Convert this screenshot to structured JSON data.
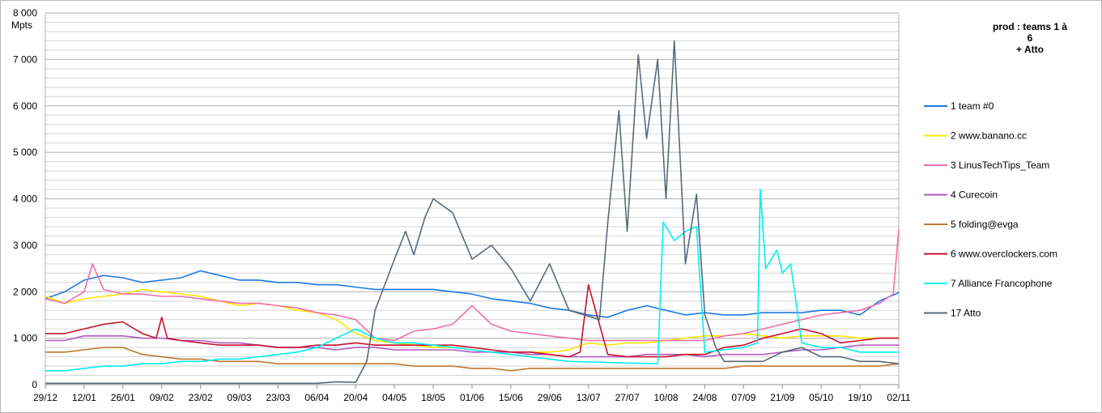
{
  "chart_data": {
    "type": "line",
    "title": "prod : teams 1 à 6\n+ Atto",
    "ylabel": "Mpts",
    "ylim": [
      0,
      8000
    ],
    "yticks": [
      0,
      1000,
      2000,
      3000,
      4000,
      5000,
      6000,
      7000,
      8000
    ],
    "ytick_labels": [
      "0",
      "1 000",
      "2 000",
      "3 000",
      "4 000",
      "5 000",
      "6 000",
      "7 000",
      "8 000"
    ],
    "x_labels": [
      "29/12",
      "12/01",
      "26/01",
      "09/02",
      "23/02",
      "09/03",
      "23/03",
      "06/04",
      "20/04",
      "04/05",
      "18/05",
      "01/06",
      "15/06",
      "29/06",
      "13/07",
      "27/07",
      "10/08",
      "24/08",
      "07/09",
      "21/09",
      "05/10",
      "19/10",
      "02/11"
    ],
    "x_day_step": 14,
    "grid": true,
    "legend_position": "right",
    "series": [
      {
        "name": "1 team #0",
        "color": "#1f7ae0",
        "x": [
          0,
          7,
          14,
          21,
          28,
          35,
          42,
          49,
          56,
          63,
          70,
          77,
          84,
          91,
          98,
          105,
          112,
          119,
          126,
          133,
          140,
          147,
          154,
          161,
          168,
          175,
          182,
          189,
          196,
          203,
          210,
          217,
          224,
          231,
          238,
          245,
          252,
          259,
          266,
          273,
          280,
          287,
          294,
          301,
          308
        ],
        "y": [
          1850,
          2000,
          2250,
          2350,
          2300,
          2200,
          2250,
          2300,
          2450,
          2350,
          2250,
          2250,
          2200,
          2200,
          2150,
          2150,
          2100,
          2050,
          2050,
          2050,
          2050,
          2000,
          1950,
          1850,
          1800,
          1750,
          1650,
          1600,
          1500,
          1450,
          1600,
          1700,
          1600,
          1500,
          1550,
          1500,
          1500,
          1550,
          1550,
          1550,
          1600,
          1600,
          1500,
          1800,
          1980
        ]
      },
      {
        "name": "2 www.banano.cc",
        "color": "#ffe600",
        "x": [
          0,
          7,
          14,
          21,
          28,
          35,
          42,
          49,
          56,
          63,
          70,
          77,
          84,
          91,
          98,
          105,
          112,
          119,
          126,
          133,
          140,
          147,
          154,
          161,
          168,
          175,
          182,
          189,
          196,
          203,
          210,
          217,
          224,
          231,
          238,
          245,
          252,
          259,
          266,
          273,
          280,
          287,
          294,
          301,
          308
        ],
        "y": [
          1900,
          1750,
          1850,
          1900,
          1950,
          2050,
          2000,
          1950,
          1900,
          1800,
          1700,
          1750,
          1700,
          1600,
          1550,
          1400,
          1100,
          950,
          900,
          850,
          800,
          800,
          750,
          700,
          700,
          700,
          700,
          750,
          900,
          850,
          900,
          900,
          950,
          1000,
          1050,
          1050,
          1100,
          1050,
          1000,
          1050,
          1050,
          1050,
          1000,
          1000,
          1000
        ]
      },
      {
        "name": "3 LinusTechTips_Team",
        "color": "#f06eaa",
        "x": [
          0,
          7,
          14,
          17,
          21,
          28,
          35,
          42,
          49,
          56,
          63,
          70,
          77,
          84,
          91,
          98,
          105,
          112,
          119,
          126,
          133,
          140,
          147,
          154,
          161,
          168,
          175,
          182,
          189,
          196,
          203,
          210,
          217,
          224,
          231,
          238,
          245,
          252,
          259,
          266,
          273,
          280,
          287,
          294,
          301,
          306,
          308
        ],
        "y": [
          1850,
          1750,
          2000,
          2600,
          2050,
          1950,
          1950,
          1900,
          1900,
          1850,
          1800,
          1750,
          1750,
          1700,
          1650,
          1550,
          1500,
          1400,
          1000,
          950,
          1150,
          1200,
          1300,
          1700,
          1300,
          1150,
          1100,
          1050,
          1000,
          950,
          950,
          950,
          950,
          950,
          950,
          950,
          1050,
          1100,
          1200,
          1300,
          1400,
          1500,
          1550,
          1600,
          1750,
          1950,
          3350
        ]
      },
      {
        "name": "4 Curecoin",
        "color": "#b35ac4",
        "x": [
          0,
          7,
          14,
          21,
          28,
          35,
          42,
          49,
          56,
          63,
          70,
          77,
          84,
          91,
          98,
          105,
          112,
          119,
          126,
          133,
          140,
          147,
          154,
          161,
          168,
          175,
          182,
          189,
          196,
          203,
          210,
          217,
          224,
          231,
          238,
          245,
          252,
          259,
          266,
          273,
          280,
          287,
          294,
          301,
          308
        ],
        "y": [
          950,
          950,
          1050,
          1050,
          1050,
          1000,
          1000,
          950,
          950,
          900,
          900,
          850,
          800,
          800,
          800,
          750,
          800,
          800,
          750,
          750,
          750,
          750,
          700,
          700,
          700,
          650,
          650,
          600,
          600,
          600,
          600,
          650,
          650,
          650,
          600,
          650,
          650,
          650,
          700,
          750,
          750,
          800,
          850,
          850,
          850
        ]
      },
      {
        "name": "5 folding@evga",
        "color": "#c07830",
        "x": [
          0,
          7,
          14,
          21,
          28,
          35,
          42,
          49,
          56,
          63,
          70,
          77,
          84,
          91,
          98,
          105,
          112,
          119,
          126,
          133,
          140,
          147,
          154,
          161,
          168,
          175,
          182,
          189,
          196,
          203,
          210,
          217,
          224,
          231,
          238,
          245,
          252,
          259,
          266,
          273,
          280,
          287,
          294,
          301,
          308
        ],
        "y": [
          700,
          700,
          750,
          800,
          800,
          650,
          600,
          550,
          550,
          500,
          500,
          500,
          450,
          450,
          450,
          450,
          450,
          450,
          450,
          400,
          400,
          400,
          350,
          350,
          300,
          350,
          350,
          350,
          350,
          350,
          350,
          350,
          350,
          350,
          350,
          350,
          400,
          400,
          400,
          400,
          400,
          400,
          400,
          400,
          450
        ]
      },
      {
        "name": "6 www.overclockers.com",
        "color": "#c8102e",
        "x": [
          0,
          7,
          14,
          21,
          28,
          35,
          40,
          42,
          44,
          49,
          56,
          63,
          70,
          77,
          84,
          91,
          98,
          105,
          112,
          119,
          126,
          133,
          140,
          145,
          147,
          154,
          161,
          168,
          175,
          182,
          189,
          193,
          196,
          203,
          210,
          217,
          224,
          231,
          238,
          245,
          252,
          259,
          266,
          273,
          280,
          287,
          294,
          301,
          308
        ],
        "y": [
          1100,
          1100,
          1200,
          1300,
          1350,
          1100,
          1000,
          1450,
          1000,
          950,
          900,
          850,
          850,
          850,
          800,
          800,
          850,
          850,
          900,
          850,
          850,
          850,
          850,
          850,
          850,
          800,
          750,
          700,
          700,
          650,
          600,
          700,
          2150,
          650,
          600,
          600,
          600,
          650,
          650,
          800,
          850,
          1000,
          1100,
          1200,
          1100,
          900,
          950,
          1000,
          1000
        ]
      },
      {
        "name": "7 Alliance Francophone",
        "color": "#00f0f0",
        "x": [
          0,
          7,
          14,
          21,
          28,
          35,
          42,
          49,
          56,
          63,
          70,
          77,
          84,
          91,
          98,
          105,
          112,
          119,
          126,
          133,
          140,
          147,
          154,
          161,
          168,
          175,
          182,
          189,
          221,
          223,
          227,
          231,
          235,
          238,
          245,
          252,
          257,
          258,
          260,
          264,
          266,
          269,
          273,
          280,
          287,
          294,
          301,
          308
        ],
        "y": [
          300,
          300,
          350,
          400,
          400,
          450,
          450,
          500,
          500,
          550,
          550,
          600,
          650,
          700,
          800,
          1000,
          1200,
          1000,
          900,
          900,
          850,
          800,
          750,
          700,
          650,
          600,
          550,
          500,
          450,
          3500,
          3100,
          3300,
          3400,
          700,
          750,
          800,
          900,
          4200,
          2500,
          2900,
          2400,
          2600,
          900,
          800,
          800,
          700,
          700,
          700
        ]
      },
      {
        "name": "17 Atto",
        "color": "#5a6a78",
        "x": [
          0,
          7,
          14,
          21,
          28,
          35,
          42,
          49,
          56,
          63,
          70,
          77,
          84,
          91,
          98,
          105,
          112,
          116,
          119,
          126,
          130,
          133,
          137,
          140,
          147,
          154,
          161,
          168,
          175,
          182,
          189,
          200,
          203,
          207,
          210,
          214,
          217,
          221,
          224,
          227,
          231,
          235,
          238,
          242,
          245,
          252,
          259,
          266,
          273,
          280,
          287,
          294,
          301,
          308
        ],
        "y": [
          30,
          30,
          30,
          30,
          30,
          30,
          30,
          30,
          30,
          30,
          30,
          30,
          30,
          30,
          30,
          60,
          50,
          500,
          1600,
          2700,
          3300,
          2800,
          3600,
          4000,
          3700,
          2700,
          3000,
          2500,
          1800,
          2600,
          1600,
          1400,
          3500,
          5900,
          3300,
          7100,
          5300,
          7000,
          4000,
          7400,
          2600,
          4100,
          1500,
          800,
          500,
          500,
          500,
          700,
          800,
          600,
          600,
          500,
          500,
          450
        ]
      }
    ]
  }
}
